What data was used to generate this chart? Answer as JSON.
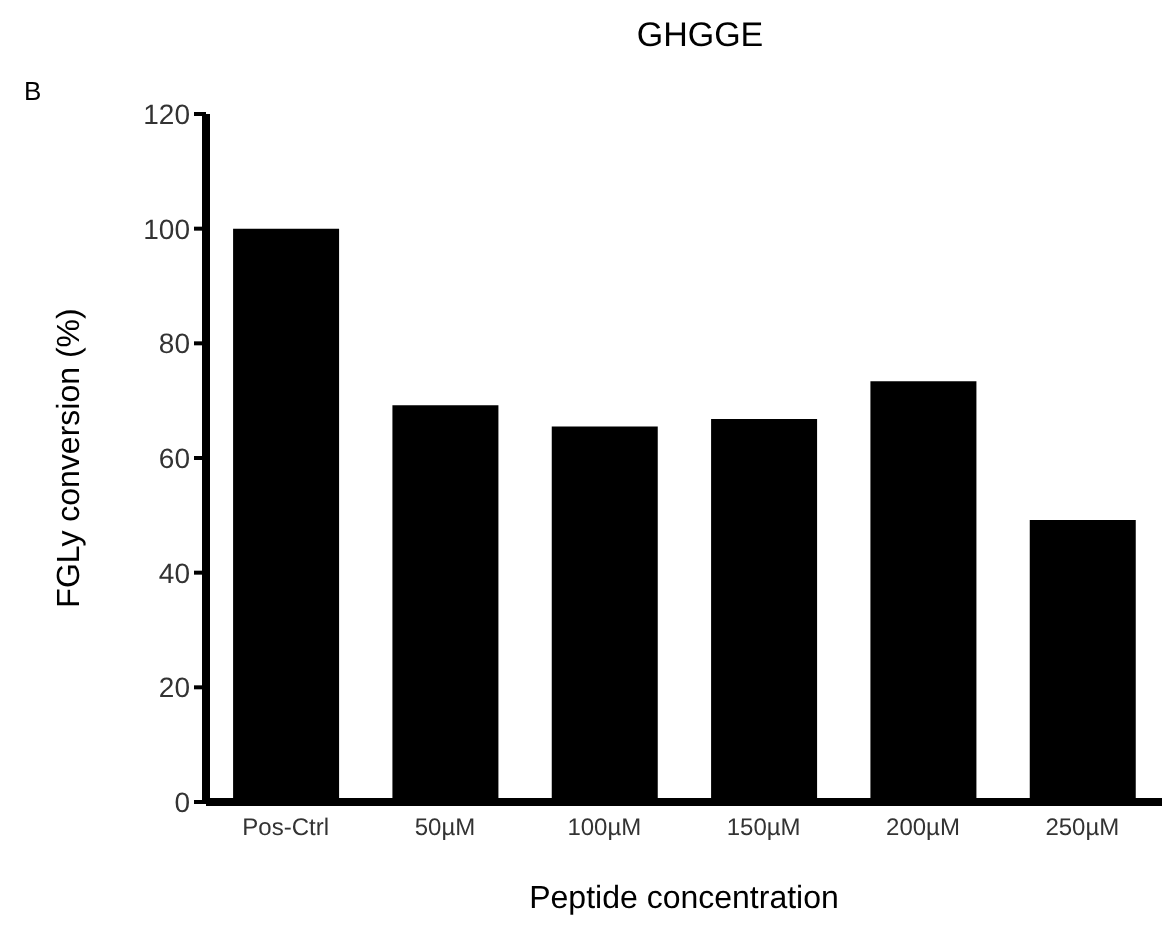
{
  "chart_data": {
    "type": "bar",
    "title": "GHGGE",
    "xlabel": "Peptide concentration",
    "ylabel": "FGLy conversion (%)",
    "annotations": [
      "B"
    ],
    "categories": [
      "Pos-Ctrl",
      "50µM",
      "100µM",
      "150µM",
      "200µM",
      "250µM"
    ],
    "values": [
      100,
      69.2,
      65.5,
      66.8,
      73.4,
      49.2
    ],
    "color": "#000000",
    "ylim": [
      0,
      120
    ],
    "yticks": [
      0,
      20,
      40,
      60,
      80,
      100,
      120
    ],
    "grid": false
  }
}
